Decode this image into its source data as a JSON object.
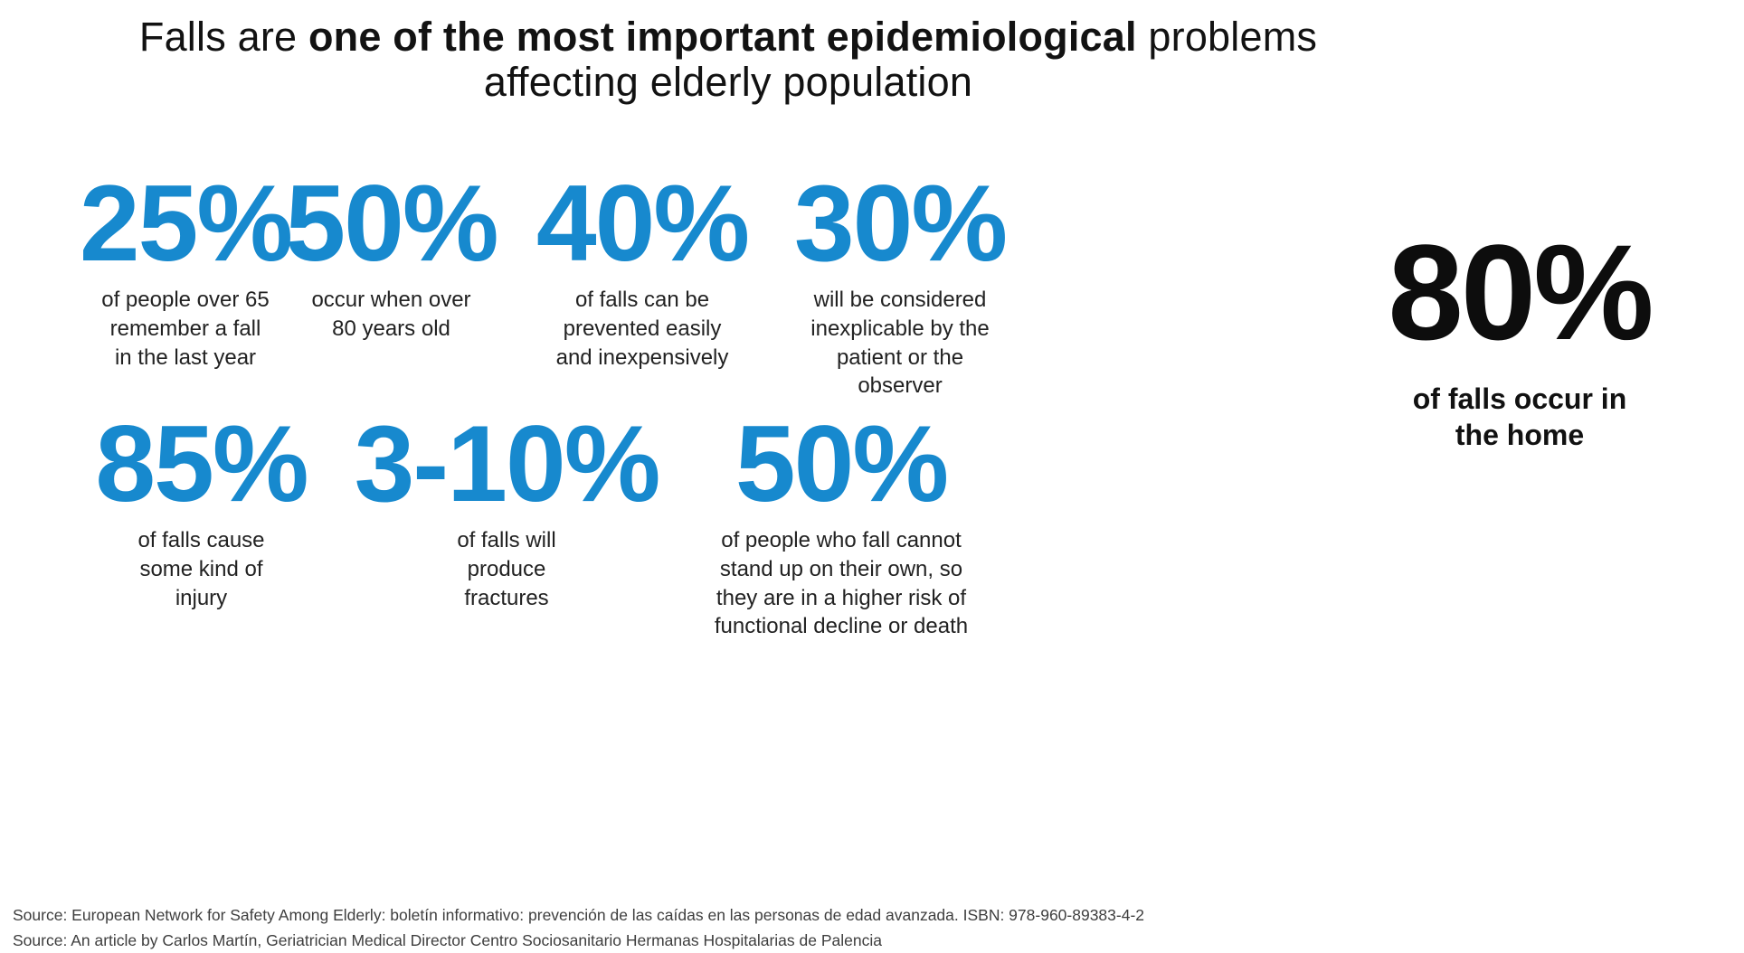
{
  "title": {
    "line1_prefix": "Falls are ",
    "line1_bold": "one of the most important epidemiological",
    "line1_suffix": " problems",
    "line2": "affecting elderly population"
  },
  "colors": {
    "accent_blue": "#1789CE",
    "highlight_black": "#0d0d0d",
    "body_text": "#222222",
    "source_text": "#3e3e3e",
    "background": "#ffffff"
  },
  "stats_row1": [
    {
      "value": "25%",
      "description": "of people over 65\nremember a fall\nin the last year"
    },
    {
      "value": "50%",
      "description": "occur when over\n80 years old"
    },
    {
      "value": "40%",
      "description": "of falls can be\nprevented easily\nand inexpensively"
    },
    {
      "value": "30%",
      "description": "will be considered\ninexplicable by the\npatient or the\nobserver"
    }
  ],
  "highlight": {
    "value": "80%",
    "description": "of falls occur in\nthe home"
  },
  "stats_row2": [
    {
      "value": "85%",
      "description": "of falls cause\nsome kind of\ninjury"
    },
    {
      "value": "3-10%",
      "description": "of falls will\nproduce\nfractures"
    },
    {
      "value": "50%",
      "description": "of people who fall cannot\nstand up on their own, so\nthey are in a higher risk of\nfunctional decline or death"
    }
  ],
  "sources": [
    "Source: European Network for Safety Among Elderly: boletín informativo: prevención de las caídas en las personas de edad avanzada. ISBN: 978-960-89383-4-2",
    "Source: An article by Carlos Martín, Geriatrician Medical Director Centro Sociosanitario Hermanas Hospitalarias de Palencia"
  ],
  "chart_data": {
    "type": "table",
    "title": "Falls are one of the most important epidemiological problems affecting elderly population",
    "stats": [
      {
        "value_percent": 25,
        "label": "of people over 65 remember a fall in the last year"
      },
      {
        "value_percent": 50,
        "label": "occur when over 80 years old"
      },
      {
        "value_percent": 40,
        "label": "of falls can be prevented easily and inexpensively"
      },
      {
        "value_percent": 30,
        "label": "will be considered inexplicable by the patient or the observer"
      },
      {
        "value_percent": 80,
        "label": "of falls occur in the home"
      },
      {
        "value_percent": 85,
        "label": "of falls cause some kind of injury"
      },
      {
        "value_percent": "3-10",
        "label": "of falls will produce fractures"
      },
      {
        "value_percent": 50,
        "label": "of people who fall cannot stand up on their own, so they are in a higher risk of functional decline or death"
      }
    ]
  }
}
